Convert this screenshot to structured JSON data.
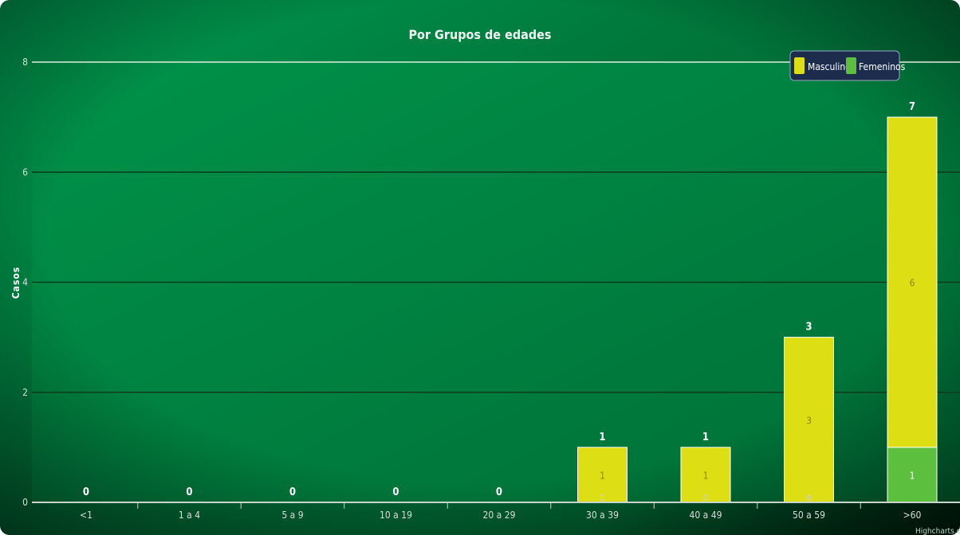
{
  "chart_data": {
    "type": "bar",
    "stacked": true,
    "title": "Por Grupos de edades",
    "ylabel": "Casos",
    "xlabel": "",
    "ylim": [
      0,
      8
    ],
    "yticks": [
      0,
      2,
      4,
      6,
      8
    ],
    "grid": true,
    "legend_position": "top-right",
    "categories": [
      "<1",
      "1 a 4",
      "5 a 9",
      "10 a 19",
      "20 a 29",
      "30 a 39",
      "40 a 49",
      "50 a 59",
      ">60"
    ],
    "totals": [
      0,
      0,
      0,
      0,
      0,
      1,
      1,
      3,
      7
    ],
    "series": [
      {
        "name": "Masculinos",
        "color": "#dede14",
        "values": [
          0,
          0,
          0,
          0,
          0,
          1,
          1,
          3,
          6
        ]
      },
      {
        "name": "Femeninos",
        "color": "#5cbf3e",
        "values": [
          0,
          0,
          0,
          0,
          0,
          0,
          0,
          0,
          1
        ]
      }
    ]
  },
  "credits": "Highcharts.com",
  "colors": {
    "plot_top": "#008f47",
    "plot_bottom": "#006a34",
    "edge_dark": "#002710"
  }
}
